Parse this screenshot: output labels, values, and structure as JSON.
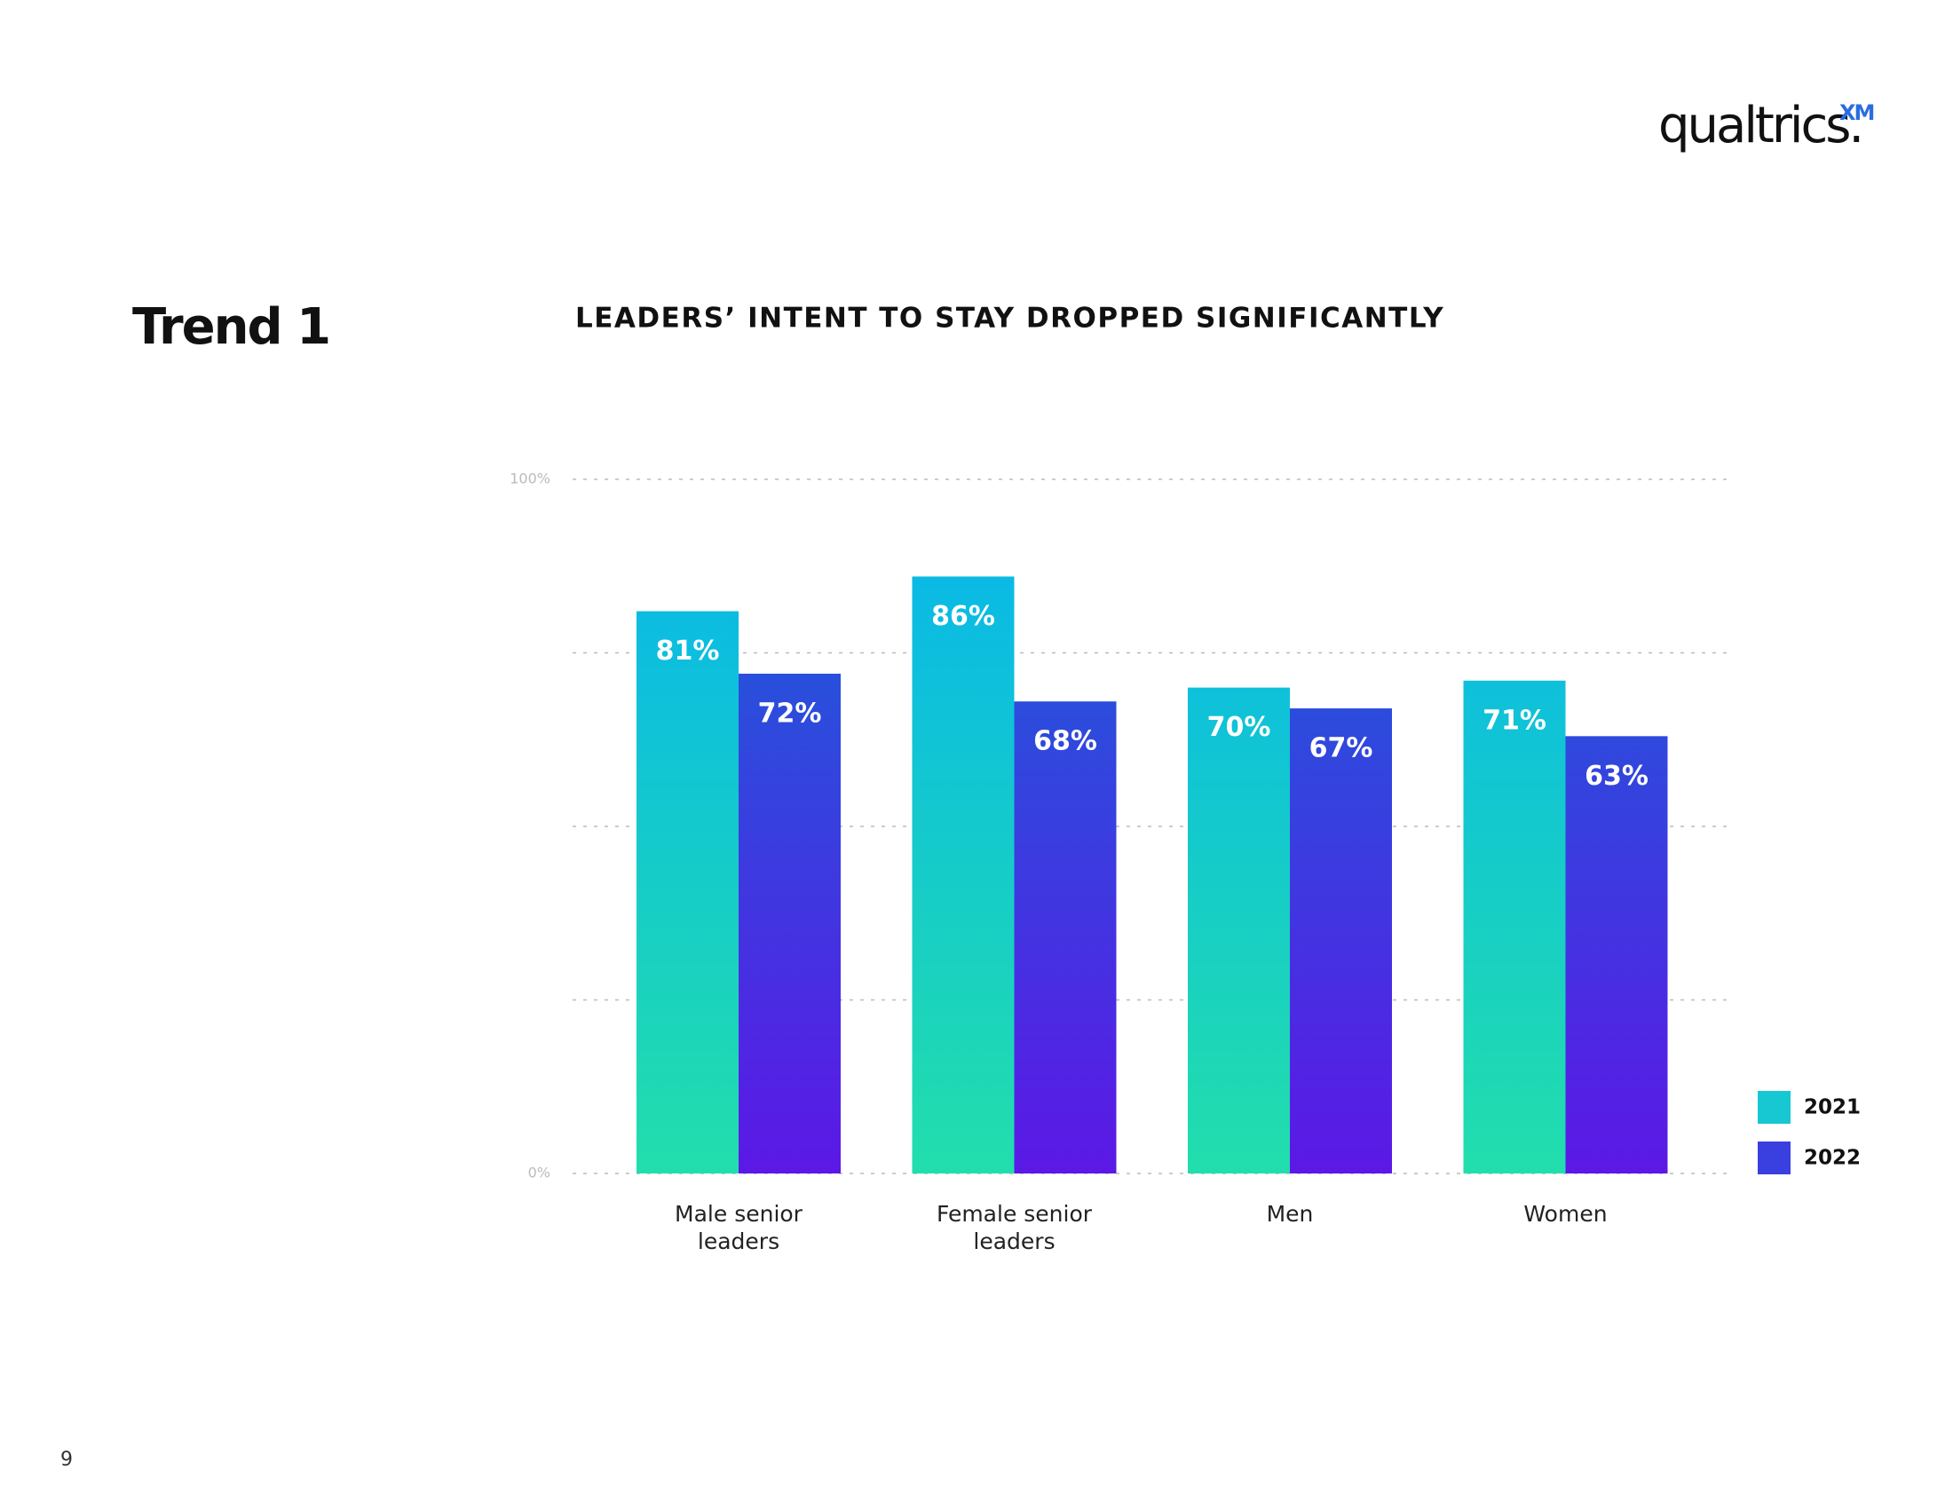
{
  "page": {
    "section": "Trend 1",
    "brand": "qualtrics.",
    "brand_mark": "XM",
    "page_number": "9"
  },
  "chart_data": {
    "type": "bar",
    "title": "LEADERS’ INTENT TO STAY DROPPED SIGNIFICANTLY",
    "categories": [
      "Male senior leaders",
      "Female senior leaders",
      "Men",
      "Women"
    ],
    "series": [
      {
        "name": "2021",
        "color": [
          "#06b4ee",
          "#22deac"
        ],
        "swatch": "#17c8d2",
        "values": [
          81,
          86,
          70,
          71
        ],
        "value_labels": [
          "81%",
          "86%",
          "70%",
          "71%"
        ]
      },
      {
        "name": "2022",
        "color": [
          "#1565d8",
          "#5c18e6"
        ],
        "swatch": "#3a3fe0",
        "values": [
          72,
          68,
          67,
          63
        ],
        "value_labels": [
          "72%",
          "68%",
          "67%",
          "63%"
        ]
      }
    ],
    "ylim": [
      0,
      100
    ],
    "yticks": [
      {
        "value": 0,
        "label": "0%"
      },
      {
        "value": 25,
        "label": null
      },
      {
        "value": 50,
        "label": null
      },
      {
        "value": 75,
        "label": null
      },
      {
        "value": 100,
        "label": "100%"
      }
    ],
    "grid": true,
    "legend": "right"
  }
}
